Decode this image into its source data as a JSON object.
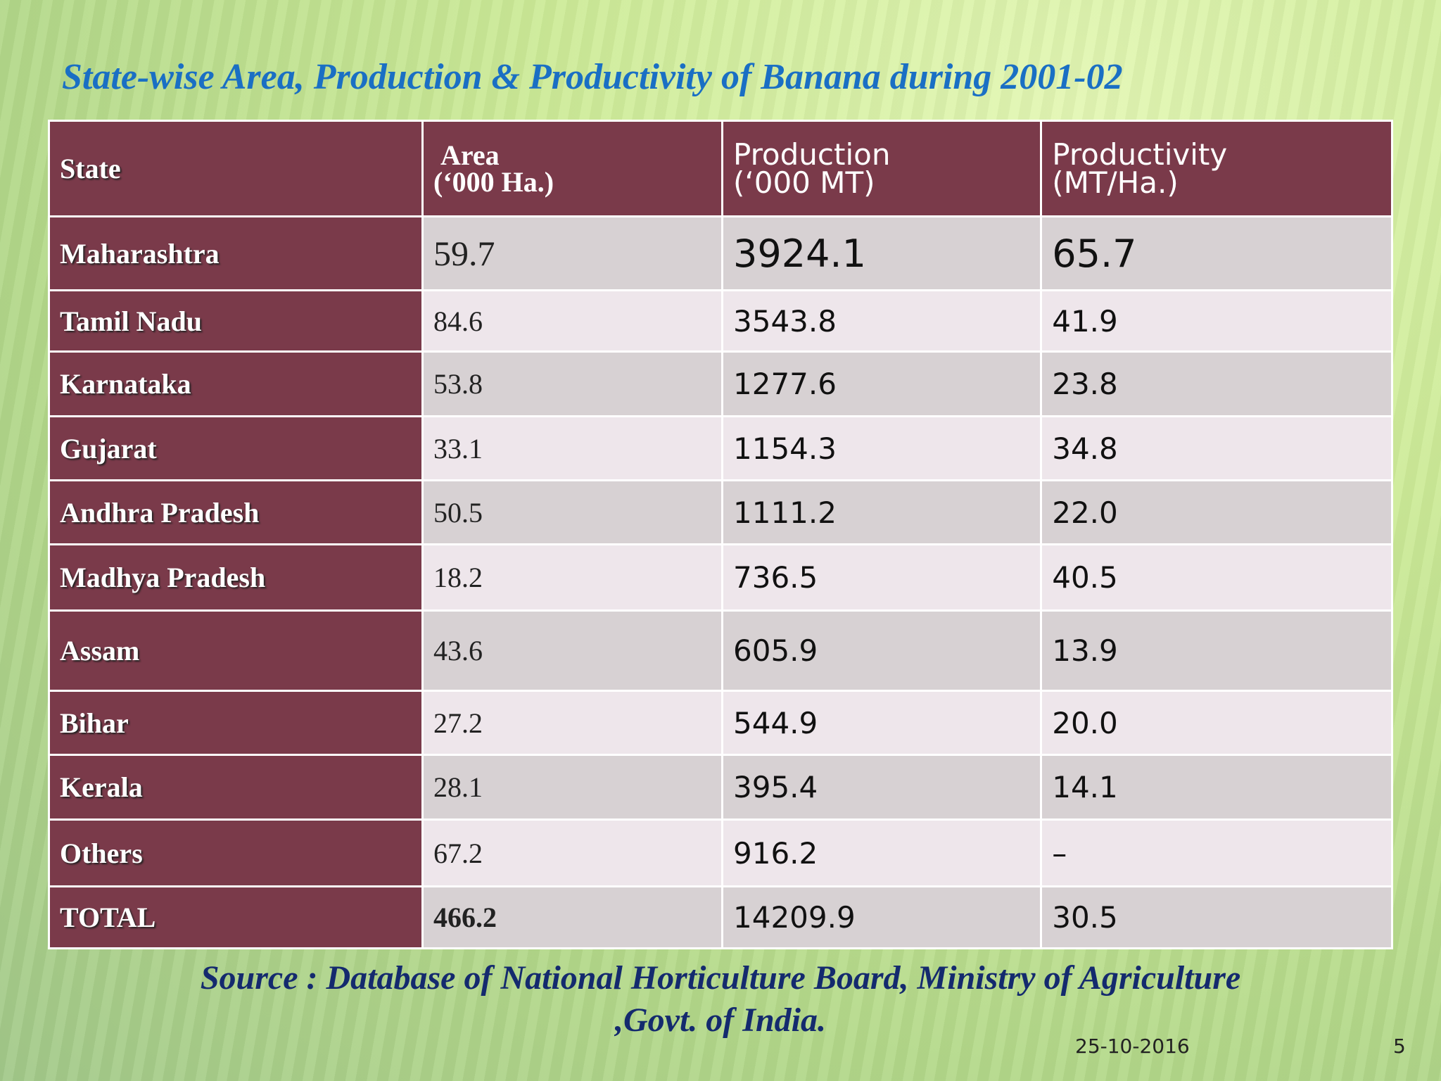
{
  "title": "State-wise Area, Production & Productivity of Banana during 2001-02",
  "table": {
    "headers": [
      {
        "line1": "State",
        "line2": ""
      },
      {
        "line1": "Area",
        "line2": "(‘000 Ha.)"
      },
      {
        "line1": "Production",
        "line2": "(‘000 MT)"
      },
      {
        "line1": "Productivity",
        "line2": "(MT/Ha.)"
      }
    ],
    "rows": [
      {
        "state": "Maharashtra",
        "area": "59.7",
        "production": "3924.1",
        "productivity": "65.7"
      },
      {
        "state": "Tamil Nadu",
        "area": "84.6",
        "production": "3543.8",
        "productivity": "41.9"
      },
      {
        "state": "Karnataka",
        "area": "53.8",
        "production": "1277.6",
        "productivity": "23.8"
      },
      {
        "state": "Gujarat",
        "area": "33.1",
        "production": "1154.3",
        "productivity": "34.8"
      },
      {
        "state": "Andhra Pradesh",
        "area": "50.5",
        "production": "1111.2",
        "productivity": "22.0"
      },
      {
        "state": "Madhya Pradesh",
        "area": "18.2",
        "production": "736.5",
        "productivity": "40.5"
      },
      {
        "state": "Assam",
        "area": "43.6",
        "production": "605.9",
        "productivity": "13.9"
      },
      {
        "state": "Bihar",
        "area": "27.2",
        "production": "544.9",
        "productivity": "20.0"
      },
      {
        "state": "Kerala",
        "area": "28.1",
        "production": "395.4",
        "productivity": "14.1"
      },
      {
        "state": "Others",
        "area": "67.2",
        "production": "916.2",
        "productivity": "–"
      },
      {
        "state": "TOTAL",
        "area": "466.2",
        "production": "14209.9",
        "productivity": "30.5"
      }
    ]
  },
  "source_line1": "Source : Database of National Horticulture Board, Ministry of Agriculture",
  "source_line2": ",Govt. of India.",
  "date": "25-10-2016",
  "page_number": "5"
}
